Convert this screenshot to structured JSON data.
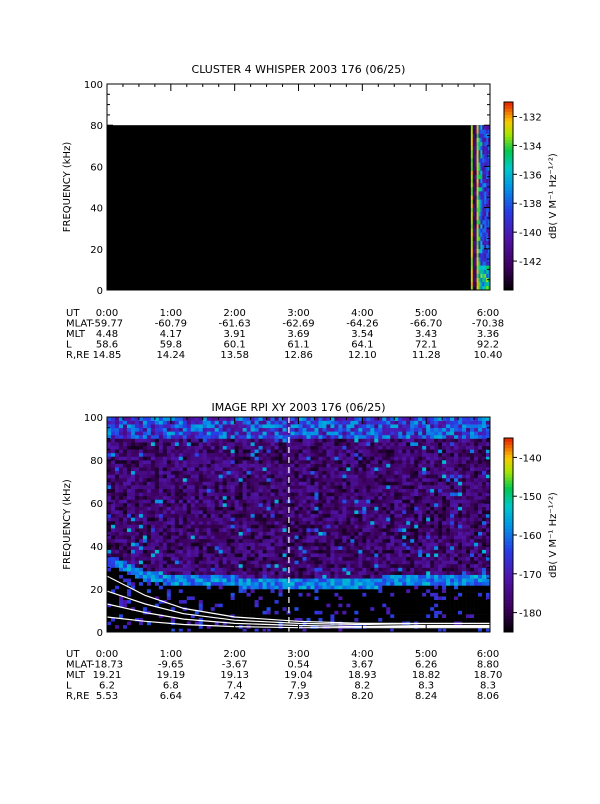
{
  "chart_data": [
    {
      "type": "heatmap",
      "title": "CLUSTER 4 WHISPER 2003 176 (06/25)",
      "ylabel": "FREQUENCY (kHz)",
      "ylim": [
        0,
        100
      ],
      "yticks": [
        "0",
        "20",
        "40",
        "60",
        "80",
        "100"
      ],
      "xlim_hours": [
        0,
        6
      ],
      "colorbar": {
        "label": "dB( V M⁻¹ Hz⁻¹ᐟ²)",
        "range": [
          -144,
          -131
        ],
        "ticks": [
          "-132",
          "-134",
          "-136",
          "-138",
          "-140",
          "-142"
        ]
      },
      "data_top_khz": 80,
      "background_level_db": -144,
      "active_interval_hours": [
        5.7,
        6.0
      ],
      "ephemeris": {
        "labels": [
          "UT",
          "MLAT",
          "MLT",
          "L",
          "R,RE"
        ],
        "columns": [
          {
            "UT": "0:00",
            "MLAT": "-59.77",
            "MLT": "4.48",
            "L": "58.6",
            "R,RE": "14.85"
          },
          {
            "UT": "1:00",
            "MLAT": "-60.79",
            "MLT": "4.17",
            "L": "59.8",
            "R,RE": "14.24"
          },
          {
            "UT": "2:00",
            "MLAT": "-61.63",
            "MLT": "3.91",
            "L": "60.1",
            "R,RE": "13.58"
          },
          {
            "UT": "3:00",
            "MLAT": "-62.69",
            "MLT": "3.69",
            "L": "61.1",
            "R,RE": "12.86"
          },
          {
            "UT": "4:00",
            "MLAT": "-64.26",
            "MLT": "3.54",
            "L": "64.1",
            "R,RE": "12.10"
          },
          {
            "UT": "5:00",
            "MLAT": "-66.70",
            "MLT": "3.43",
            "L": "72.1",
            "R,RE": "11.28"
          },
          {
            "UT": "6:00",
            "MLAT": "-70.38",
            "MLT": "3.36",
            "L": "92.2",
            "R,RE": "10.40"
          }
        ]
      }
    },
    {
      "type": "heatmap",
      "title": "IMAGE RPI XY 2003 176 (06/25)",
      "ylabel": "FREQUENCY (kHz)",
      "ylim": [
        0,
        100
      ],
      "yticks": [
        "0",
        "20",
        "40",
        "60",
        "80",
        "100"
      ],
      "xlim_hours": [
        0,
        6
      ],
      "colorbar": {
        "label": "dB( V M⁻¹ Hz⁻¹ᐟ²)",
        "range": [
          -185,
          -135
        ],
        "ticks": [
          "-140",
          "-150",
          "-160",
          "-170",
          "-180"
        ]
      },
      "marker_line_hours": 2.85,
      "cutoff_trace_khz": [
        [
          0.0,
          33
        ],
        [
          0.2,
          31
        ],
        [
          0.4,
          28
        ],
        [
          0.6,
          26
        ],
        [
          0.8,
          25
        ],
        [
          1.0,
          24
        ],
        [
          1.3,
          23
        ],
        [
          1.6,
          23
        ],
        [
          2.0,
          23
        ],
        [
          2.4,
          22
        ],
        [
          2.8,
          22
        ],
        [
          3.2,
          22
        ],
        [
          3.6,
          22
        ],
        [
          4.0,
          22
        ],
        [
          4.4,
          23
        ],
        [
          4.8,
          23
        ],
        [
          5.2,
          23
        ],
        [
          5.6,
          23
        ],
        [
          6.0,
          24
        ]
      ],
      "harmonic_curves_khz": [
        [
          [
            0.0,
            26
          ],
          [
            0.6,
            17
          ],
          [
            1.2,
            11
          ],
          [
            2.0,
            7
          ],
          [
            3.0,
            5
          ],
          [
            4.0,
            4
          ],
          [
            5.0,
            4
          ],
          [
            6.0,
            4
          ]
        ],
        [
          [
            0.0,
            19
          ],
          [
            0.6,
            13
          ],
          [
            1.2,
            8.5
          ],
          [
            2.0,
            5.5
          ],
          [
            3.0,
            4
          ],
          [
            4.0,
            3.5
          ],
          [
            5.0,
            3
          ],
          [
            6.0,
            3
          ]
        ],
        [
          [
            0.0,
            13
          ],
          [
            0.6,
            9
          ],
          [
            1.2,
            6
          ],
          [
            2.0,
            4
          ],
          [
            3.0,
            3
          ],
          [
            4.0,
            2.5
          ],
          [
            5.0,
            2.5
          ],
          [
            6.0,
            2.5
          ]
        ],
        [
          [
            0.0,
            7
          ],
          [
            0.6,
            5
          ],
          [
            1.2,
            3.5
          ],
          [
            2.0,
            2.5
          ],
          [
            3.0,
            2
          ],
          [
            4.0,
            2
          ],
          [
            5.0,
            2
          ],
          [
            6.0,
            2
          ]
        ]
      ],
      "ephemeris": {
        "labels": [
          "UT",
          "MLAT",
          "MLT",
          "L",
          "R,RE"
        ],
        "columns": [
          {
            "UT": "0:00",
            "MLAT": "-18.73",
            "MLT": "19.21",
            "L": "6.2",
            "R,RE": "5.53"
          },
          {
            "UT": "1:00",
            "MLAT": "-9.65",
            "MLT": "19.19",
            "L": "6.8",
            "R,RE": "6.64"
          },
          {
            "UT": "2:00",
            "MLAT": "-3.67",
            "MLT": "19.13",
            "L": "7.4",
            "R,RE": "7.42"
          },
          {
            "UT": "3:00",
            "MLAT": "0.54",
            "MLT": "19.04",
            "L": "7.9",
            "R,RE": "7.93"
          },
          {
            "UT": "4:00",
            "MLAT": "3.67",
            "MLT": "18.93",
            "L": "8.2",
            "R,RE": "8.20"
          },
          {
            "UT": "5:00",
            "MLAT": "6.26",
            "MLT": "18.82",
            "L": "8.3",
            "R,RE": "8.24"
          },
          {
            "UT": "6:00",
            "MLAT": "8.80",
            "MLT": "18.70",
            "L": "8.3",
            "R,RE": "8.06"
          }
        ]
      }
    }
  ]
}
